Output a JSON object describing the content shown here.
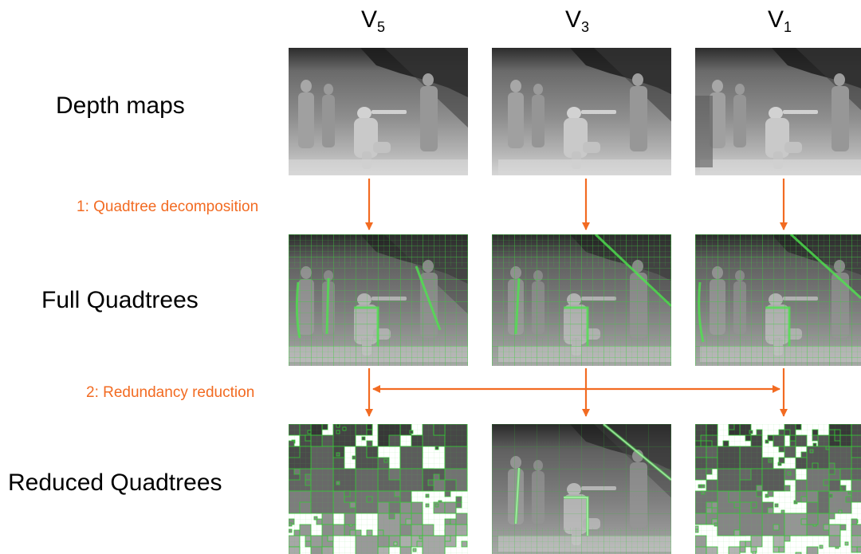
{
  "columns": [
    {
      "id": "v5",
      "base": "V",
      "sub": "5"
    },
    {
      "id": "v3",
      "base": "V",
      "sub": "3"
    },
    {
      "id": "v1",
      "base": "V",
      "sub": "1"
    }
  ],
  "rows": {
    "depth": "Depth maps",
    "full": "Full Quadtrees",
    "reduced": "Reduced Quadtrees"
  },
  "steps": {
    "step1": "1: Quadtree decomposition",
    "step2": "2: Redundancy reduction"
  },
  "colors": {
    "arrow": "#f26b22",
    "step_text": "#f26b22",
    "quadtree_green": "#35c43a"
  }
}
